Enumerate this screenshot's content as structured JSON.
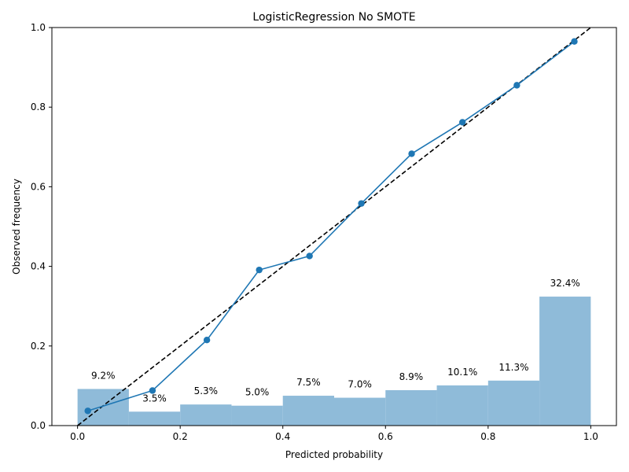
{
  "chart_data": {
    "type": "bar+line",
    "title": "LogisticRegression No SMOTE",
    "xlabel": "Predicted probability",
    "ylabel": "Observed frequency",
    "xlim": [
      -0.05,
      1.05
    ],
    "ylim": [
      0,
      1
    ],
    "xticks": [
      "0.0",
      "0.2",
      "0.4",
      "0.6",
      "0.8",
      "1.0"
    ],
    "yticks": [
      "0.0",
      "0.2",
      "0.4",
      "0.6",
      "0.8",
      "1.0"
    ],
    "histogram": {
      "bin_edges": [
        0.0,
        0.1,
        0.2,
        0.3,
        0.4,
        0.5,
        0.6,
        0.7,
        0.8,
        0.9,
        1.0
      ],
      "values": [
        0.092,
        0.035,
        0.053,
        0.05,
        0.075,
        0.07,
        0.089,
        0.101,
        0.113,
        0.324
      ],
      "labels": [
        "9.2%",
        "3.5%",
        "5.3%",
        "5.0%",
        "7.5%",
        "7.0%",
        "8.9%",
        "10.1%",
        "11.3%",
        "32.4%"
      ],
      "color": "#8fbbd9"
    },
    "calibration_curve": {
      "x": [
        0.02,
        0.146,
        0.252,
        0.354,
        0.452,
        0.553,
        0.651,
        0.75,
        0.856,
        0.968
      ],
      "y": [
        0.037,
        0.088,
        0.215,
        0.391,
        0.426,
        0.558,
        0.683,
        0.762,
        0.855,
        0.965
      ],
      "color": "#1f77b4"
    },
    "reference_line": {
      "x": [
        0,
        1
      ],
      "y": [
        0,
        1
      ],
      "color": "#000000",
      "style": "dashed"
    }
  }
}
